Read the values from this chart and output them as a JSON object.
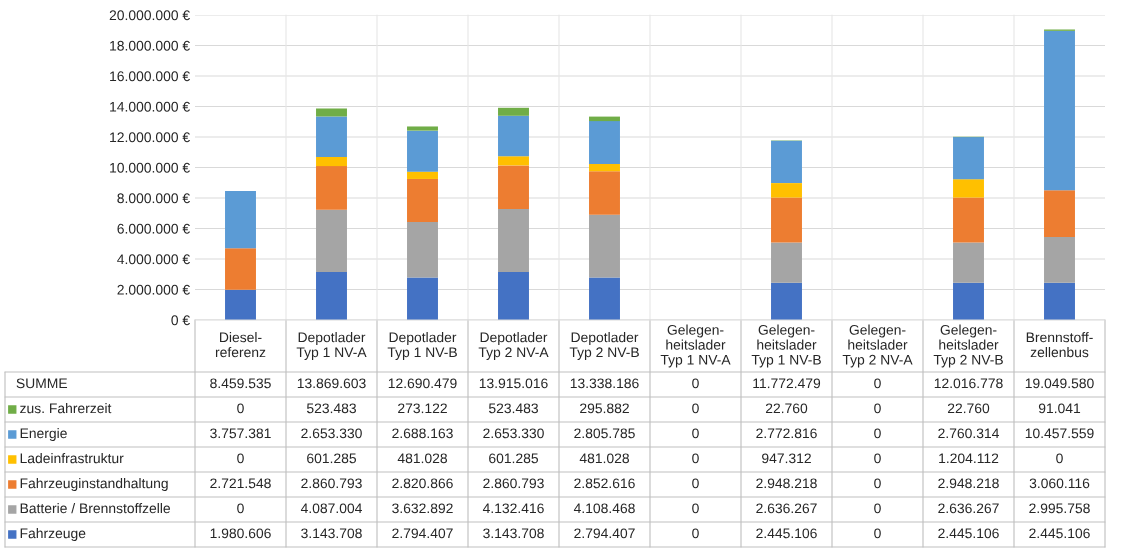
{
  "chart_data": {
    "type": "bar",
    "stacked": true,
    "grid": "y",
    "legend": "bottom left",
    "categories": [
      "Diesel-\nreferenz",
      "Depotlader\nTyp 1 NV-A",
      "Depotlader\nTyp 1 NV-B",
      "Depotlader\nTyp 2 NV-A",
      "Depotlader\nTyp 2 NV-B",
      "Gelegen-\nheitslader\nTyp 1 NV-A",
      "Gelegen-\nheitslader\nTyp 1 NV-B",
      "Gelegen-\nheitslader\nTyp 2 NV-A",
      "Gelegen-\nheitslader\nTyp 2 NV-B",
      "Brennstoff-\nzellenbus"
    ],
    "ylim": [
      0,
      20000000
    ],
    "yticks": [
      {
        "value": 0,
        "label": "0 €"
      },
      {
        "value": 2000000,
        "label": "2.000.000 €"
      },
      {
        "value": 4000000,
        "label": "4.000.000 €"
      },
      {
        "value": 6000000,
        "label": "6.000.000 €"
      },
      {
        "value": 8000000,
        "label": "8.000.000 €"
      },
      {
        "value": 10000000,
        "label": "10.000.000 €"
      },
      {
        "value": 12000000,
        "label": "12.000.000 €"
      },
      {
        "value": 14000000,
        "label": "14.000.000 €"
      },
      {
        "value": 16000000,
        "label": "16.000.000 €"
      },
      {
        "value": 18000000,
        "label": "18.000.000 €"
      },
      {
        "value": 20000000,
        "label": "20.000.000 €"
      }
    ],
    "annotations": [
      "SUMME",
      "8.459.535",
      "13.869.603",
      "12.690.479",
      "13.915.016",
      "13.338.186",
      "0",
      "11.772.479",
      "0",
      "12.016.778",
      "19.049.580"
    ],
    "series": [
      {
        "name": "Fahrzeuge",
        "color": "#4472c4",
        "values": [
          1980606,
          3143708,
          2794407,
          3143708,
          2794407,
          0,
          2445106,
          0,
          2445106,
          2445106
        ],
        "value_labels": [
          "1.980.606",
          "3.143.708",
          "2.794.407",
          "3.143.708",
          "2.794.407",
          "0",
          "2.445.106",
          "0",
          "2.445.106",
          "2.445.106"
        ]
      },
      {
        "name": "Batterie / Brennstoffzelle",
        "color": "#a5a5a5",
        "values": [
          0,
          4087004,
          3632892,
          4132416,
          4108468,
          0,
          2636267,
          0,
          2636267,
          2995758
        ],
        "value_labels": [
          "0",
          "4.087.004",
          "3.632.892",
          "4.132.416",
          "4.108.468",
          "0",
          "2.636.267",
          "0",
          "2.636.267",
          "2.995.758"
        ]
      },
      {
        "name": "Fahrzeuginstandhaltung",
        "color": "#ed7d31",
        "values": [
          2721548,
          2860793,
          2820866,
          2860793,
          2852616,
          0,
          2948218,
          0,
          2948218,
          3060116
        ],
        "value_labels": [
          "2.721.548",
          "2.860.793",
          "2.820.866",
          "2.860.793",
          "2.852.616",
          "0",
          "2.948.218",
          "0",
          "2.948.218",
          "3.060.116"
        ]
      },
      {
        "name": "Ladeinfrastruktur",
        "color": "#ffc000",
        "values": [
          0,
          601285,
          481028,
          601285,
          481028,
          0,
          947312,
          0,
          1204112,
          0
        ],
        "value_labels": [
          "0",
          "601.285",
          "481.028",
          "601.285",
          "481.028",
          "0",
          "947.312",
          "0",
          "1.204.112",
          "0"
        ]
      },
      {
        "name": "Energie",
        "color": "#5b9bd5",
        "values": [
          3757381,
          2653330,
          2688163,
          2653330,
          2805785,
          0,
          2772816,
          0,
          2760314,
          10457559
        ],
        "value_labels": [
          "3.757.381",
          "2.653.330",
          "2.688.163",
          "2.653.330",
          "2.805.785",
          "0",
          "2.772.816",
          "0",
          "2.760.314",
          "10.457.559"
        ]
      },
      {
        "name": "zus. Fahrerzeit",
        "color": "#70ad47",
        "values": [
          0,
          523483,
          273122,
          523483,
          295882,
          0,
          22760,
          0,
          22760,
          91041
        ],
        "value_labels": [
          "0",
          "523.483",
          "273.122",
          "523.483",
          "295.882",
          "0",
          "22.760",
          "0",
          "22.760",
          "91.041"
        ]
      }
    ]
  }
}
